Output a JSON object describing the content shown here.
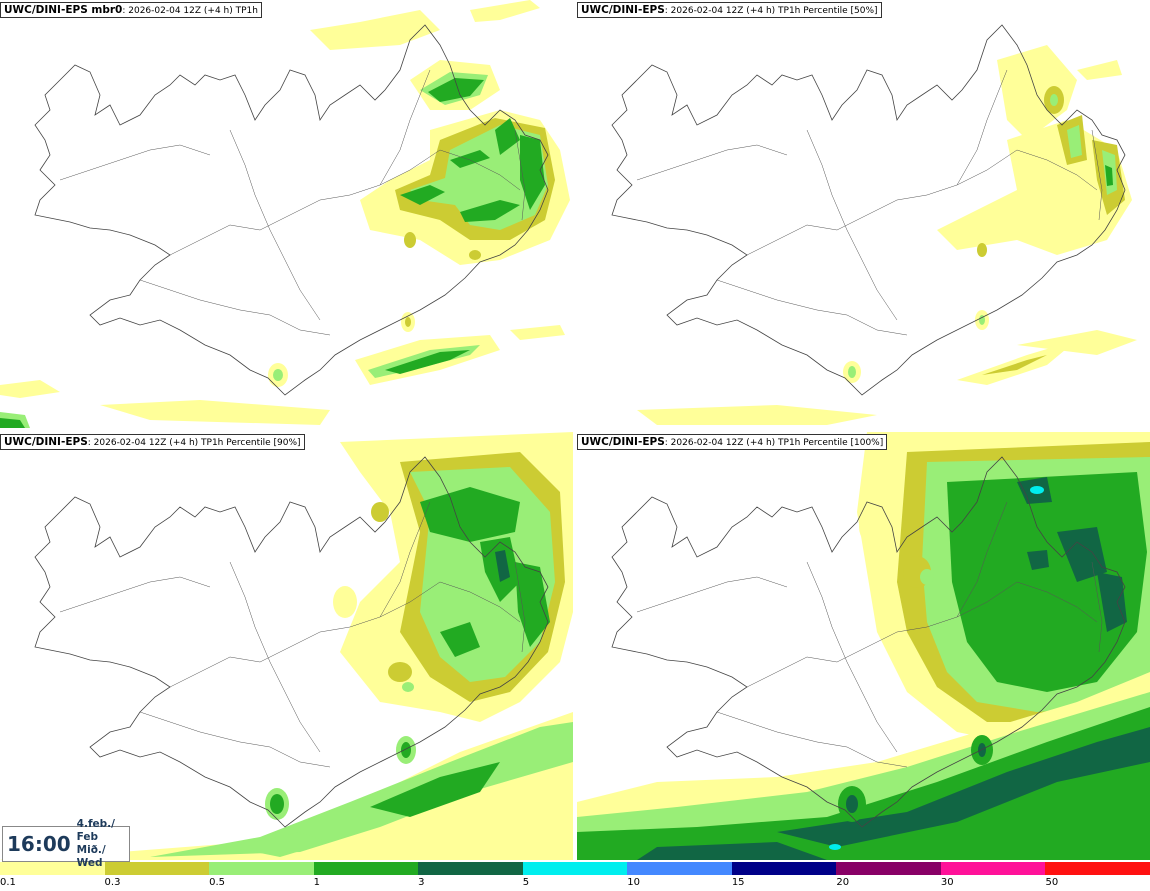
{
  "panels": [
    {
      "model": "UWC/DINI-EPS mbr0",
      "rest": ": 2026-02-04 12Z (+4 h) TP1h"
    },
    {
      "model": "UWC/DINI-EPS",
      "rest": ": 2026-02-04 12Z (+4 h) TP1h Percentile [50%]"
    },
    {
      "model": "UWC/DINI-EPS",
      "rest": ": 2026-02-04 12Z (+4 h) TP1h Percentile [90%]"
    },
    {
      "model": "UWC/DINI-EPS",
      "rest": ": 2026-02-04 12Z (+4 h) TP1h Percentile [100%]"
    }
  ],
  "valid_time": {
    "time": "16:00",
    "date_line1": "4.feb./ Feb",
    "date_line2": "Mið./ Wed"
  },
  "legend": {
    "labels": [
      "0.1",
      "0.3",
      "0.5",
      "1",
      "3",
      "5",
      "10",
      "15",
      "20",
      "30",
      "50"
    ],
    "colors": [
      "#ffff99",
      "#cccc33",
      "#99ee77",
      "#22aa22",
      "#116644",
      "#00eeee",
      "#4488ff",
      "#000088",
      "#880066",
      "#ff1199",
      "#ff1111"
    ]
  },
  "colors": {
    "c01": "#ffff99",
    "c03": "#cccc33",
    "c05": "#99ee77",
    "c1": "#22aa22",
    "c3": "#116644",
    "c5": "#00eeee"
  }
}
